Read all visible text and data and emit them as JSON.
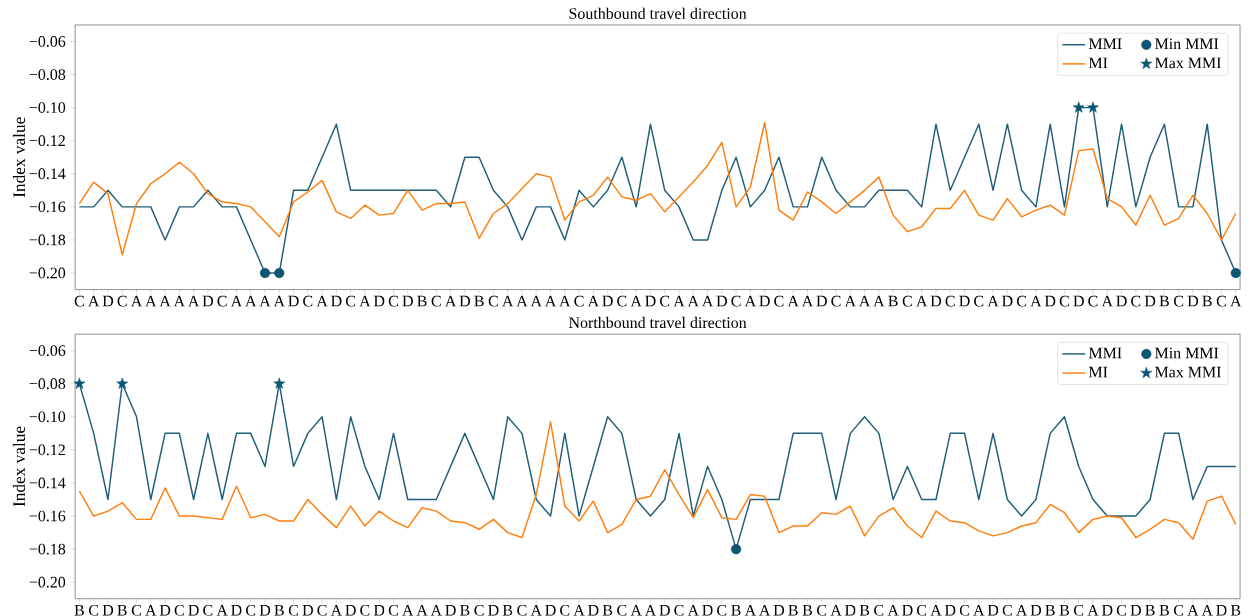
{
  "chart_data": [
    {
      "type": "line",
      "title": "Southbound travel direction",
      "ylabel": "Index value",
      "categories": [
        "C",
        "A",
        "D",
        "C",
        "A",
        "A",
        "A",
        "A",
        "A",
        "D",
        "C",
        "A",
        "A",
        "A",
        "A",
        "D",
        "C",
        "A",
        "D",
        "C",
        "A",
        "D",
        "C",
        "D",
        "B",
        "C",
        "A",
        "D",
        "B",
        "C",
        "A",
        "A",
        "A",
        "A",
        "A",
        "C",
        "A",
        "D",
        "C",
        "A",
        "D",
        "C",
        "A",
        "A",
        "A",
        "D",
        "C",
        "A",
        "D",
        "C",
        "A",
        "A",
        "D",
        "C",
        "A",
        "A",
        "A",
        "B",
        "C",
        "A",
        "D",
        "C",
        "D",
        "C",
        "A",
        "D",
        "C",
        "A",
        "D",
        "C",
        "D",
        "C",
        "A",
        "D",
        "C",
        "D",
        "B",
        "C",
        "D",
        "B",
        "C",
        "A"
      ],
      "series": [
        {
          "name": "MMI",
          "type": "line",
          "color": "#215e7a",
          "marker": "none",
          "values": [
            -0.16,
            -0.16,
            -0.15,
            -0.16,
            -0.16,
            -0.16,
            -0.18,
            -0.16,
            -0.16,
            -0.15,
            -0.16,
            -0.16,
            -0.18,
            -0.2,
            -0.2,
            -0.15,
            -0.15,
            -0.13,
            -0.11,
            -0.15,
            -0.15,
            -0.15,
            -0.15,
            -0.15,
            -0.15,
            -0.15,
            -0.16,
            -0.13,
            -0.13,
            -0.15,
            -0.16,
            -0.18,
            -0.16,
            -0.16,
            -0.18,
            -0.15,
            -0.16,
            -0.15,
            -0.13,
            -0.16,
            -0.11,
            -0.15,
            -0.16,
            -0.18,
            -0.18,
            -0.15,
            -0.13,
            -0.16,
            -0.15,
            -0.13,
            -0.16,
            -0.16,
            -0.13,
            -0.15,
            -0.16,
            -0.16,
            -0.15,
            -0.15,
            -0.15,
            -0.16,
            -0.11,
            -0.15,
            -0.13,
            -0.11,
            -0.15,
            -0.11,
            -0.15,
            -0.16,
            -0.11,
            -0.16,
            -0.1,
            -0.1,
            -0.16,
            -0.11,
            -0.16,
            -0.13,
            -0.11,
            -0.16,
            -0.16,
            -0.11,
            -0.18,
            -0.2
          ]
        },
        {
          "name": "MI",
          "type": "line",
          "color": "#ff7f0e",
          "marker": "none",
          "values": [
            -0.158,
            -0.145,
            -0.152,
            -0.189,
            -0.158,
            -0.146,
            -0.14,
            -0.133,
            -0.14,
            -0.152,
            -0.157,
            -0.158,
            -0.16,
            -0.169,
            -0.178,
            -0.157,
            -0.151,
            -0.144,
            -0.163,
            -0.167,
            -0.159,
            -0.165,
            -0.164,
            -0.15,
            -0.162,
            -0.158,
            -0.158,
            -0.157,
            -0.179,
            -0.164,
            -0.158,
            -0.149,
            -0.14,
            -0.142,
            -0.168,
            -0.157,
            -0.153,
            -0.142,
            -0.154,
            -0.156,
            -0.152,
            -0.163,
            -0.154,
            -0.145,
            -0.135,
            -0.121,
            -0.16,
            -0.148,
            -0.109,
            -0.162,
            -0.168,
            -0.151,
            -0.157,
            -0.164,
            -0.157,
            -0.15,
            -0.142,
            -0.165,
            -0.175,
            -0.172,
            -0.161,
            -0.161,
            -0.15,
            -0.165,
            -0.168,
            -0.155,
            -0.166,
            -0.162,
            -0.159,
            -0.165,
            -0.126,
            -0.125,
            -0.155,
            -0.16,
            -0.171,
            -0.153,
            -0.171,
            -0.167,
            -0.153,
            -0.164,
            -0.18,
            -0.164
          ]
        },
        {
          "name": "Min MMI",
          "type": "scatter",
          "color": "#0d5673",
          "marker": "circle",
          "values": [
            null,
            null,
            null,
            null,
            null,
            null,
            null,
            null,
            null,
            null,
            null,
            null,
            null,
            -0.2,
            -0.2,
            null,
            null,
            null,
            null,
            null,
            null,
            null,
            null,
            null,
            null,
            null,
            null,
            null,
            null,
            null,
            null,
            null,
            null,
            null,
            null,
            null,
            null,
            null,
            null,
            null,
            null,
            null,
            null,
            null,
            null,
            null,
            null,
            null,
            null,
            null,
            null,
            null,
            null,
            null,
            null,
            null,
            null,
            null,
            null,
            null,
            null,
            null,
            null,
            null,
            null,
            null,
            null,
            null,
            null,
            null,
            null,
            null,
            null,
            null,
            null,
            null,
            null,
            null,
            null,
            null,
            null,
            -0.2
          ]
        },
        {
          "name": "Max MMI",
          "type": "scatter",
          "color": "#0d5673",
          "marker": "star",
          "values": [
            null,
            null,
            null,
            null,
            null,
            null,
            null,
            null,
            null,
            null,
            null,
            null,
            null,
            null,
            null,
            null,
            null,
            null,
            null,
            null,
            null,
            null,
            null,
            null,
            null,
            null,
            null,
            null,
            null,
            null,
            null,
            null,
            null,
            null,
            null,
            null,
            null,
            null,
            null,
            null,
            null,
            null,
            null,
            null,
            null,
            null,
            null,
            null,
            null,
            null,
            null,
            null,
            null,
            null,
            null,
            null,
            null,
            null,
            null,
            null,
            null,
            null,
            null,
            null,
            null,
            null,
            null,
            null,
            null,
            null,
            -0.1,
            -0.1,
            null,
            null,
            null,
            null,
            null,
            null,
            null,
            null,
            null,
            null
          ]
        }
      ],
      "ylim": [
        -0.21,
        -0.05
      ],
      "yticks": [
        {
          "value": -0.2,
          "label": "−0.20"
        },
        {
          "value": -0.18,
          "label": "−0.18"
        },
        {
          "value": -0.16,
          "label": "−0.16"
        },
        {
          "value": -0.14,
          "label": "−0.14"
        },
        {
          "value": -0.12,
          "label": "−0.12"
        },
        {
          "value": -0.1,
          "label": "−0.10"
        },
        {
          "value": -0.08,
          "label": "−0.08"
        },
        {
          "value": -0.06,
          "label": "−0.06"
        }
      ],
      "legend": "top right"
    },
    {
      "type": "line",
      "title": "Northbound travel direction",
      "ylabel": "Index value",
      "categories": [
        "B",
        "C",
        "D",
        "B",
        "C",
        "A",
        "D",
        "C",
        "D",
        "C",
        "A",
        "D",
        "C",
        "D",
        "B",
        "C",
        "D",
        "C",
        "A",
        "D",
        "C",
        "D",
        "C",
        "A",
        "A",
        "A",
        "D",
        "B",
        "C",
        "D",
        "B",
        "C",
        "A",
        "D",
        "C",
        "A",
        "D",
        "B",
        "C",
        "A",
        "A",
        "D",
        "C",
        "A",
        "D",
        "C",
        "B",
        "A",
        "A",
        "D",
        "B",
        "B",
        "C",
        "A",
        "D",
        "B",
        "C",
        "A",
        "D",
        "C",
        "A",
        "D",
        "C",
        "A",
        "D",
        "C",
        "A",
        "D",
        "B",
        "B",
        "C",
        "A",
        "D",
        "C",
        "D",
        "B",
        "B",
        "C",
        "A",
        "A",
        "D",
        "B"
      ],
      "series": [
        {
          "name": "MMI",
          "type": "line",
          "color": "#215e7a",
          "marker": "none",
          "values": [
            -0.08,
            -0.11,
            -0.15,
            -0.08,
            -0.1,
            -0.15,
            -0.11,
            -0.11,
            -0.15,
            -0.11,
            -0.15,
            -0.11,
            -0.11,
            -0.13,
            -0.08,
            -0.13,
            -0.11,
            -0.1,
            -0.15,
            -0.1,
            -0.13,
            -0.15,
            -0.11,
            -0.15,
            -0.15,
            -0.15,
            -0.13,
            -0.11,
            -0.13,
            -0.15,
            -0.1,
            -0.11,
            -0.15,
            -0.16,
            -0.11,
            -0.16,
            -0.13,
            -0.1,
            -0.11,
            -0.15,
            -0.16,
            -0.15,
            -0.11,
            -0.16,
            -0.13,
            -0.15,
            -0.18,
            -0.15,
            -0.15,
            -0.15,
            -0.11,
            -0.11,
            -0.11,
            -0.15,
            -0.11,
            -0.1,
            -0.11,
            -0.15,
            -0.13,
            -0.15,
            -0.15,
            -0.11,
            -0.11,
            -0.15,
            -0.11,
            -0.15,
            -0.16,
            -0.15,
            -0.11,
            -0.1,
            -0.13,
            -0.15,
            -0.16,
            -0.16,
            -0.16,
            -0.15,
            -0.11,
            -0.11,
            -0.15,
            -0.13,
            -0.13,
            -0.13
          ]
        },
        {
          "name": "MI",
          "type": "line",
          "color": "#ff7f0e",
          "marker": "none",
          "values": [
            -0.145,
            -0.16,
            -0.157,
            -0.152,
            -0.162,
            -0.162,
            -0.143,
            -0.16,
            -0.16,
            -0.161,
            -0.162,
            -0.142,
            -0.161,
            -0.159,
            -0.163,
            -0.163,
            -0.15,
            -0.159,
            -0.167,
            -0.154,
            -0.166,
            -0.157,
            -0.163,
            -0.167,
            -0.155,
            -0.157,
            -0.163,
            -0.164,
            -0.168,
            -0.162,
            -0.17,
            -0.173,
            -0.147,
            -0.103,
            -0.154,
            -0.163,
            -0.151,
            -0.17,
            -0.165,
            -0.15,
            -0.148,
            -0.132,
            -0.147,
            -0.161,
            -0.144,
            -0.161,
            -0.162,
            -0.147,
            -0.148,
            -0.17,
            -0.166,
            -0.166,
            -0.158,
            -0.159,
            -0.154,
            -0.172,
            -0.16,
            -0.155,
            -0.166,
            -0.173,
            -0.157,
            -0.163,
            -0.164,
            -0.169,
            -0.172,
            -0.17,
            -0.166,
            -0.164,
            -0.153,
            -0.158,
            -0.17,
            -0.162,
            -0.16,
            -0.161,
            -0.173,
            -0.168,
            -0.162,
            -0.164,
            -0.174,
            -0.151,
            -0.148,
            -0.165
          ]
        },
        {
          "name": "Min MMI",
          "type": "scatter",
          "color": "#0d5673",
          "marker": "circle",
          "values": [
            null,
            null,
            null,
            null,
            null,
            null,
            null,
            null,
            null,
            null,
            null,
            null,
            null,
            null,
            null,
            null,
            null,
            null,
            null,
            null,
            null,
            null,
            null,
            null,
            null,
            null,
            null,
            null,
            null,
            null,
            null,
            null,
            null,
            null,
            null,
            null,
            null,
            null,
            null,
            null,
            null,
            null,
            null,
            null,
            null,
            null,
            -0.18,
            null,
            null,
            null,
            null,
            null,
            null,
            null,
            null,
            null,
            null,
            null,
            null,
            null,
            null,
            null,
            null,
            null,
            null,
            null,
            null,
            null,
            null,
            null,
            null,
            null,
            null,
            null,
            null,
            null,
            null,
            null,
            null,
            null,
            null,
            null
          ]
        },
        {
          "name": "Max MMI",
          "type": "scatter",
          "color": "#0d5673",
          "marker": "star",
          "values": [
            -0.08,
            null,
            null,
            -0.08,
            null,
            null,
            null,
            null,
            null,
            null,
            null,
            null,
            null,
            null,
            -0.08,
            null,
            null,
            null,
            null,
            null,
            null,
            null,
            null,
            null,
            null,
            null,
            null,
            null,
            null,
            null,
            null,
            null,
            null,
            null,
            null,
            null,
            null,
            null,
            null,
            null,
            null,
            null,
            null,
            null,
            null,
            null,
            null,
            null,
            null,
            null,
            null,
            null,
            null,
            null,
            null,
            null,
            null,
            null,
            null,
            null,
            null,
            null,
            null,
            null,
            null,
            null,
            null,
            null,
            null,
            null,
            null,
            null,
            null,
            null,
            null,
            null,
            null,
            null,
            null,
            null,
            null,
            null
          ]
        }
      ],
      "ylim": [
        -0.21,
        -0.05
      ],
      "yticks": [
        {
          "value": -0.2,
          "label": "−0.20"
        },
        {
          "value": -0.18,
          "label": "−0.18"
        },
        {
          "value": -0.16,
          "label": "−0.16"
        },
        {
          "value": -0.14,
          "label": "−0.14"
        },
        {
          "value": -0.12,
          "label": "−0.12"
        },
        {
          "value": -0.1,
          "label": "−0.10"
        },
        {
          "value": -0.08,
          "label": "−0.08"
        },
        {
          "value": -0.06,
          "label": "−0.06"
        }
      ],
      "legend": "top right"
    }
  ]
}
